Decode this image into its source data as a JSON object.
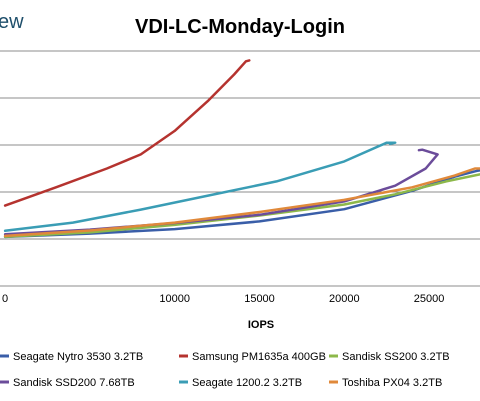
{
  "brand_text": "ew",
  "chart_data": {
    "type": "line",
    "title": "VDI-LC-Monday-Login",
    "xlabel": "IOPS",
    "ylabel": "",
    "xlim": [
      -300,
      28000
    ],
    "ylim": [
      0,
      1
    ],
    "x_ticks": [
      {
        "value": 0,
        "label": "0"
      },
      {
        "value": 10000,
        "label": "10000"
      },
      {
        "value": 15000,
        "label": "15000"
      },
      {
        "value": 20000,
        "label": "20000"
      },
      {
        "value": 25000,
        "label": "25000"
      }
    ],
    "y_gridlines": [
      0.2,
      0.4,
      0.6,
      0.8,
      1.0
    ],
    "grid": true,
    "legend_position": "bottom",
    "series": [
      {
        "name": "Seagate Nytro 3530 3.2TB",
        "color": "#3a5ea8",
        "points": [
          [
            0,
            0.209
          ],
          [
            5000,
            0.223
          ],
          [
            10000,
            0.242
          ],
          [
            15000,
            0.275
          ],
          [
            20000,
            0.327
          ],
          [
            24000,
            0.405
          ],
          [
            26500,
            0.465
          ],
          [
            27800,
            0.49
          ],
          [
            28000,
            0.492
          ]
        ]
      },
      {
        "name": "Samsung PM1635a 400GB",
        "color": "#b5332f",
        "points": [
          [
            0,
            0.342
          ],
          [
            3000,
            0.42
          ],
          [
            6000,
            0.5
          ],
          [
            8000,
            0.56
          ],
          [
            10000,
            0.66
          ],
          [
            12000,
            0.79
          ],
          [
            13500,
            0.9
          ],
          [
            14200,
            0.956
          ],
          [
            14400,
            0.96
          ]
        ]
      },
      {
        "name": "Sandisk SS200 3.2TB",
        "color": "#8db84a",
        "points": [
          [
            0,
            0.21
          ],
          [
            5000,
            0.228
          ],
          [
            10000,
            0.26
          ],
          [
            15000,
            0.3
          ],
          [
            20000,
            0.347
          ],
          [
            23000,
            0.39
          ],
          [
            26000,
            0.445
          ],
          [
            28000,
            0.475
          ]
        ]
      },
      {
        "name": "Sandisk SSD200 7.68TB",
        "color": "#6b4c9a",
        "points": [
          [
            0,
            0.22
          ],
          [
            5000,
            0.24
          ],
          [
            10000,
            0.268
          ],
          [
            15000,
            0.303
          ],
          [
            20000,
            0.36
          ],
          [
            23000,
            0.427
          ],
          [
            24800,
            0.5
          ],
          [
            25500,
            0.56
          ],
          [
            24600,
            0.58
          ],
          [
            24400,
            0.578
          ]
        ]
      },
      {
        "name": "Seagate 1200.2 3.2TB",
        "color": "#3a9db5",
        "points": [
          [
            0,
            0.235
          ],
          [
            4000,
            0.27
          ],
          [
            8000,
            0.325
          ],
          [
            12000,
            0.385
          ],
          [
            16000,
            0.445
          ],
          [
            20000,
            0.53
          ],
          [
            22500,
            0.61
          ],
          [
            23000,
            0.61
          ],
          [
            22700,
            0.605
          ]
        ]
      },
      {
        "name": "Toshiba PX04 3.2TB",
        "color": "#e0893a",
        "points": [
          [
            0,
            0.213
          ],
          [
            5000,
            0.236
          ],
          [
            10000,
            0.27
          ],
          [
            15000,
            0.315
          ],
          [
            20000,
            0.367
          ],
          [
            24000,
            0.42
          ],
          [
            26500,
            0.47
          ],
          [
            27700,
            0.5
          ],
          [
            28000,
            0.5
          ]
        ]
      }
    ]
  }
}
